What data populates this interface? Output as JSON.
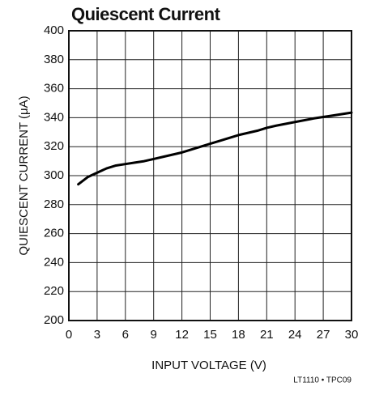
{
  "chart_data": {
    "type": "line",
    "title": "Quiescent Current",
    "xlabel": "INPUT VOLTAGE (V)",
    "ylabel": "QUIESCENT CURRENT (μA)",
    "note": "LT1110 • TPC09",
    "x": [
      1,
      2,
      3,
      4,
      5,
      6,
      7,
      8,
      9,
      10,
      12,
      14,
      15,
      16,
      18,
      20,
      21,
      22,
      24,
      26,
      27,
      28,
      30
    ],
    "series": [
      {
        "name": "Quiescent Current",
        "color": "#000000",
        "values": [
          294,
          299,
          302,
          305,
          307,
          308,
          309,
          310,
          311.5,
          313,
          316,
          320,
          322,
          324,
          328,
          331,
          333,
          334.5,
          337,
          339.5,
          340.5,
          341.5,
          343.5
        ]
      }
    ],
    "xlim": [
      0,
      30
    ],
    "xticks": [
      0,
      3,
      6,
      9,
      12,
      15,
      18,
      21,
      24,
      27,
      30
    ],
    "ylim": [
      200,
      400
    ],
    "yticks": [
      200,
      220,
      240,
      260,
      280,
      300,
      320,
      340,
      360,
      380,
      400
    ],
    "grid": true
  }
}
